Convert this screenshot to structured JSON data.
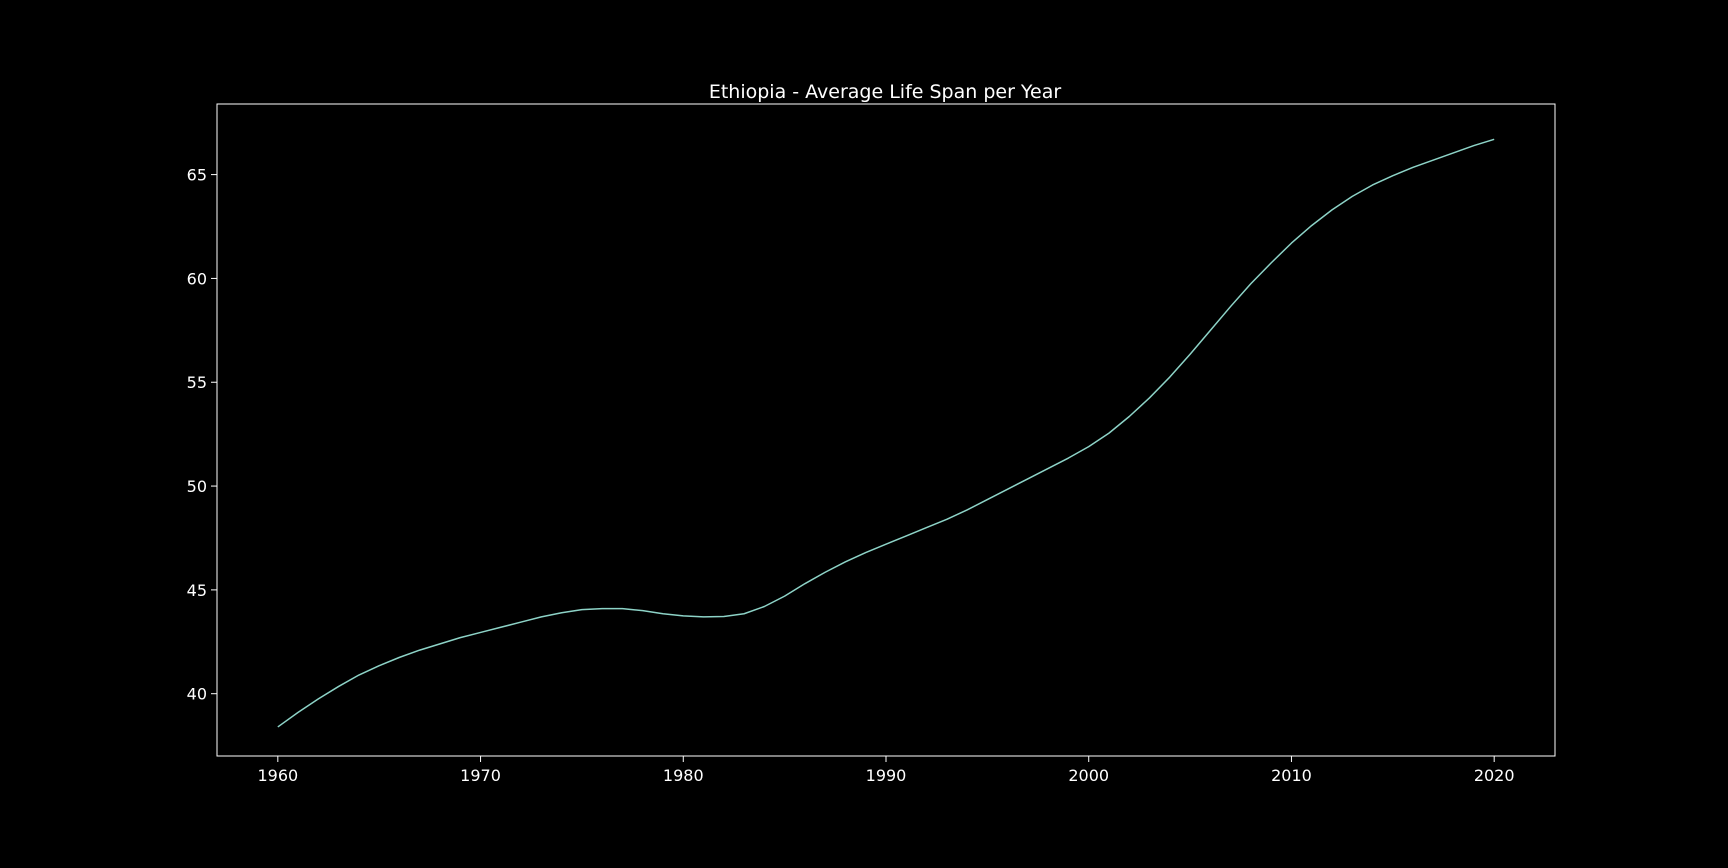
{
  "chart_data": {
    "type": "line",
    "title": "Ethiopia - Average Life Span per Year",
    "xlabel": "",
    "ylabel": "",
    "xlim": [
      1957,
      2023
    ],
    "ylim": [
      37.0,
      68.4
    ],
    "grid": false,
    "x_ticks": [
      1960,
      1970,
      1980,
      1990,
      2000,
      2010,
      2020
    ],
    "y_ticks": [
      40,
      45,
      50,
      55,
      60,
      65
    ],
    "colors": {
      "background": "#000000",
      "line": "#8dd3c7",
      "axes": "#ffffff",
      "text": "#ffffff"
    },
    "series": [
      {
        "x": [
          1960,
          1961,
          1962,
          1963,
          1964,
          1965,
          1966,
          1967,
          1968,
          1969,
          1970,
          1971,
          1972,
          1973,
          1974,
          1975,
          1976,
          1977,
          1978,
          1979,
          1980,
          1981,
          1982,
          1983,
          1984,
          1985,
          1986,
          1987,
          1988,
          1989,
          1990,
          1991,
          1992,
          1993,
          1994,
          1995,
          1996,
          1997,
          1998,
          1999,
          2000,
          2001,
          2002,
          2003,
          2004,
          2005,
          2006,
          2007,
          2008,
          2009,
          2010,
          2011,
          2012,
          2013,
          2014,
          2015,
          2016,
          2017,
          2018,
          2019,
          2020
        ],
        "y": [
          38.4,
          39.1,
          39.75,
          40.35,
          40.9,
          41.35,
          41.75,
          42.1,
          42.4,
          42.7,
          42.95,
          43.2,
          43.45,
          43.7,
          43.9,
          44.05,
          44.1,
          44.1,
          44.0,
          43.85,
          43.75,
          43.7,
          43.72,
          43.85,
          44.2,
          44.7,
          45.3,
          45.85,
          46.35,
          46.8,
          47.2,
          47.6,
          48.0,
          48.4,
          48.85,
          49.35,
          49.85,
          50.35,
          50.85,
          51.35,
          51.9,
          52.55,
          53.35,
          54.25,
          55.25,
          56.35,
          57.5,
          58.65,
          59.75,
          60.75,
          61.7,
          62.55,
          63.3,
          63.95,
          64.5,
          64.95,
          65.35,
          65.7,
          66.05,
          66.4,
          66.7
        ]
      }
    ]
  }
}
